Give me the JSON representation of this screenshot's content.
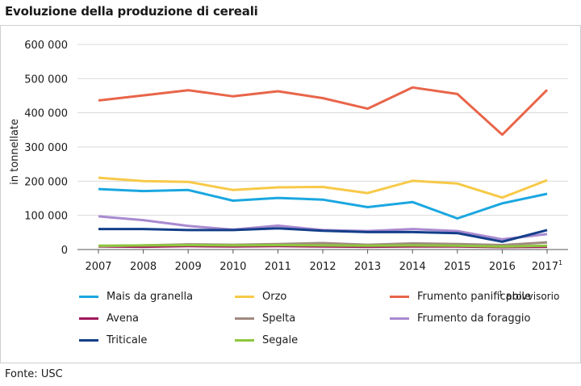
{
  "title": "Evoluzione della produzione di cereali",
  "source": "Fonte: USC",
  "footnote": {
    "marker": "1",
    "text": "provvisorio"
  },
  "chart_data": {
    "type": "line",
    "ylabel": "in tonnellate",
    "ylim": [
      0,
      600000
    ],
    "yticks": [
      0,
      100000,
      200000,
      300000,
      400000,
      500000,
      600000
    ],
    "ytick_labels": [
      "0",
      "100 000",
      "200 000",
      "300 000",
      "400 000",
      "500 000",
      "600 000"
    ],
    "categories": [
      "2007",
      "2008",
      "2009",
      "2010",
      "2011",
      "2012",
      "2013",
      "2014",
      "2015",
      "2016",
      "2017"
    ],
    "last_category_superscript": "1",
    "series": [
      {
        "name": "Mais da granella",
        "color": "#1aa7e0",
        "values": [
          177000,
          171000,
          174000,
          143000,
          151000,
          146000,
          124000,
          139000,
          91000,
          135000,
          163000
        ]
      },
      {
        "name": "Orzo",
        "color": "#f7c948",
        "values": [
          210000,
          200000,
          198000,
          174000,
          182000,
          183000,
          165000,
          201000,
          193000,
          152000,
          203000
        ]
      },
      {
        "name": "Frumento panificabile",
        "color": "#e8654a",
        "values": [
          436000,
          451000,
          466000,
          448000,
          463000,
          443000,
          412000,
          474000,
          455000,
          336000,
          467000
        ]
      },
      {
        "name": "Avena",
        "color": "#a0185c",
        "values": [
          9000,
          8000,
          10000,
          9000,
          10000,
          9000,
          8000,
          9000,
          9000,
          7000,
          8000
        ]
      },
      {
        "name": "Spelta",
        "color": "#a08a80",
        "values": [
          10000,
          12000,
          15000,
          14000,
          16000,
          19000,
          14000,
          18000,
          16000,
          13000,
          21000
        ]
      },
      {
        "name": "Frumento da foraggio",
        "color": "#a98ad0",
        "values": [
          97000,
          86000,
          69000,
          58000,
          70000,
          57000,
          54000,
          60000,
          54000,
          30000,
          45000
        ]
      },
      {
        "name": "Triticale",
        "color": "#133f8a",
        "values": [
          60000,
          60000,
          57000,
          57000,
          62000,
          55000,
          51000,
          51000,
          48000,
          23000,
          57000
        ]
      },
      {
        "name": "Segale",
        "color": "#8ec63f",
        "values": [
          11000,
          12000,
          13000,
          12000,
          13000,
          12000,
          11000,
          12000,
          11000,
          9000,
          11000
        ]
      }
    ]
  }
}
